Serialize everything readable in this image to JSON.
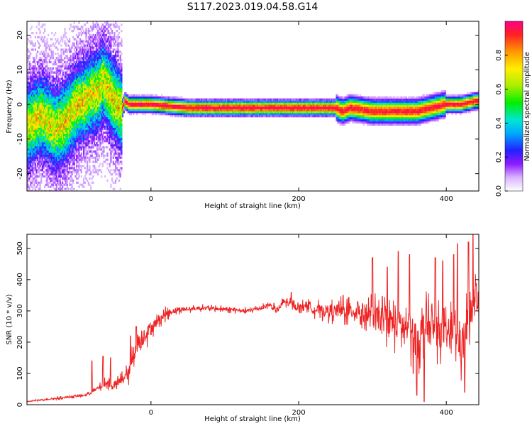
{
  "title": "S117.2023.019.04.58.G14",
  "chart_data": [
    {
      "type": "heatmap",
      "title": "S117.2023.019.04.58.G14",
      "xlabel": "Height of straight line (km)",
      "ylabel": "Frequency (Hz)",
      "xlim": [
        -168,
        444
      ],
      "ylim": [
        -25,
        24
      ],
      "xticks": [
        0,
        200,
        400
      ],
      "yticks": [
        -20,
        -10,
        0,
        10,
        20
      ],
      "colorbar": {
        "label": "Normalized spectral amplitude",
        "range": [
          0,
          1
        ],
        "ticks": [
          "0.0",
          "0.2",
          "0.4",
          "0.6",
          "0.8"
        ],
        "tick_values": [
          0.0,
          0.2,
          0.4,
          0.6,
          0.8
        ]
      },
      "ridge": {
        "x": [
          -165,
          -150,
          -140,
          -130,
          -120,
          -110,
          -100,
          -90,
          -80,
          -70,
          -65,
          -60,
          -55,
          -50,
          -45,
          -40,
          -35,
          -30,
          -20,
          0,
          50,
          100,
          150,
          200,
          250,
          260,
          270,
          300,
          320,
          340,
          360,
          380,
          400,
          420,
          440
        ],
        "y": [
          -6,
          -3,
          -5,
          -7,
          -6,
          -3,
          0,
          1,
          3,
          4,
          7,
          5,
          3,
          1,
          0,
          -2,
          1,
          0,
          0,
          0,
          -1,
          -1,
          -1,
          -1,
          -1,
          -2,
          -1,
          -2,
          -2,
          -2,
          -2,
          -1,
          0,
          0,
          1
        ]
      }
    },
    {
      "type": "line",
      "xlabel": "Height of straight line (km)",
      "ylabel": "SNR (10 * v/v)",
      "xlim": [
        -168,
        444
      ],
      "ylim": [
        0,
        545
      ],
      "xticks": [
        0,
        200,
        400
      ],
      "yticks": [
        0,
        100,
        200,
        300,
        400,
        500
      ],
      "series": [
        {
          "name": "SNR",
          "color": "#ee2222",
          "x": [
            -168,
            -150,
            -130,
            -110,
            -90,
            -80,
            -70,
            -60,
            -50,
            -40,
            -30,
            -25,
            -20,
            -15,
            -10,
            0,
            10,
            20,
            30,
            40,
            50,
            70,
            100,
            130,
            150,
            160,
            170,
            180,
            190,
            200,
            210,
            220,
            240,
            260,
            280,
            290,
            300,
            320,
            340,
            350,
            360,
            370,
            380,
            400,
            410,
            420,
            425,
            430,
            435,
            440,
            444
          ],
          "y": [
            10,
            15,
            20,
            25,
            30,
            40,
            55,
            70,
            60,
            80,
            100,
            150,
            200,
            200,
            220,
            245,
            270,
            290,
            300,
            305,
            305,
            310,
            305,
            300,
            310,
            320,
            300,
            330,
            320,
            310,
            320,
            305,
            300,
            300,
            300,
            290,
            280,
            270,
            250,
            240,
            200,
            250,
            240,
            220,
            250,
            180,
            230,
            270,
            300,
            320,
            280
          ],
          "spread": [
            3,
            4,
            5,
            6,
            7,
            10,
            15,
            25,
            20,
            30,
            40,
            60,
            70,
            70,
            60,
            40,
            30,
            25,
            20,
            15,
            12,
            12,
            12,
            12,
            12,
            15,
            20,
            20,
            20,
            20,
            25,
            30,
            40,
            50,
            60,
            70,
            80,
            90,
            110,
            120,
            130,
            120,
            110,
            100,
            110,
            120,
            130,
            120,
            110,
            100,
            80
          ],
          "peaks": [
            [
              -80,
              140
            ],
            [
              -65,
              155
            ],
            [
              -55,
              150
            ],
            [
              -28,
              220
            ],
            [
              -20,
              250
            ],
            [
              175,
              310
            ],
            [
              180,
              335
            ],
            [
              190,
              360
            ],
            [
              260,
              350
            ],
            [
              280,
              330
            ],
            [
              300,
              470
            ],
            [
              320,
              440
            ],
            [
              335,
              490
            ],
            [
              350,
              480
            ],
            [
              355,
              100
            ],
            [
              360,
              30
            ],
            [
              370,
              10
            ],
            [
              385,
              470
            ],
            [
              395,
              460
            ],
            [
              410,
              480
            ],
            [
              415,
              515
            ],
            [
              425,
              40
            ],
            [
              430,
              520
            ],
            [
              436,
              545
            ],
            [
              440,
              380
            ]
          ]
        }
      ]
    }
  ]
}
